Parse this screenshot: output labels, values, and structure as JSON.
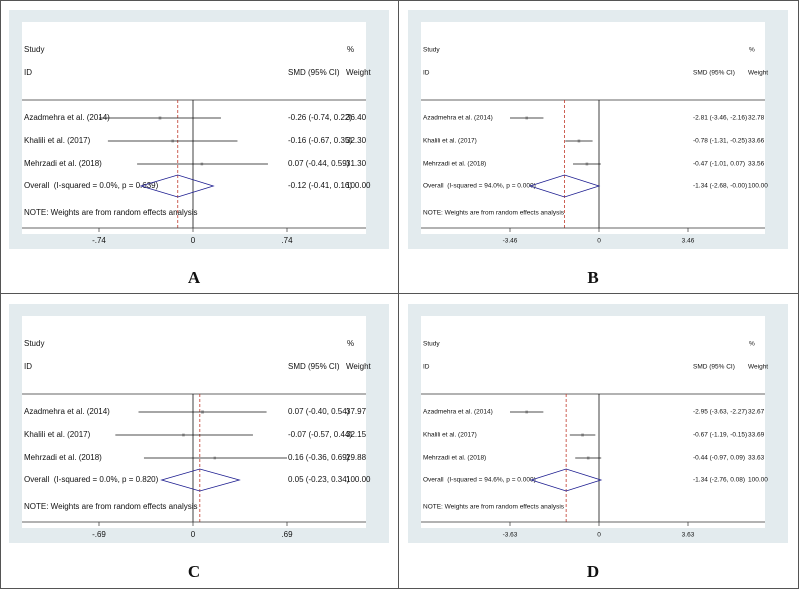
{
  "chart_data": [
    {
      "type": "forest",
      "panel": "A",
      "headers": {
        "study": "Study",
        "id": "ID",
        "effect": "SMD (95% CI)",
        "pct": "%",
        "weight": "Weight"
      },
      "studies": [
        "Azadmehra et al. (2014)",
        "Khalili et al. (2017)",
        "Mehrzadi et al. (2018)"
      ],
      "values": [
        -0.26,
        -0.16,
        0.07
      ],
      "ci_low": [
        -0.74,
        -0.67,
        -0.44
      ],
      "ci_high": [
        0.22,
        0.35,
        0.59
      ],
      "value_labels": [
        "-0.26 (-0.74, 0.22)",
        "-0.16 (-0.67, 0.35)",
        "0.07 (-0.44, 0.59)"
      ],
      "weights": [
        36.4,
        32.3,
        31.3
      ],
      "weight_labels": [
        "36.40",
        "32.30",
        "31.30"
      ],
      "overall": {
        "label": "Overall  (I-squared = 0.0%, p = 0.639)",
        "value": -0.12,
        "ci_low": -0.41,
        "ci_high": 0.16,
        "value_label": "-0.12 (-0.41, 0.16)",
        "weight": 100,
        "weight_label": "100.00"
      },
      "note": "NOTE: Weights are from random effects analysis",
      "xlim": [
        -0.74,
        0.74
      ],
      "xticks": [
        {
          "value": -0.74,
          "label": "-.74"
        },
        0,
        {
          "value": 0.74,
          "label": ".74"
        }
      ]
    },
    {
      "type": "forest",
      "panel": "B",
      "headers": {
        "study": "Study",
        "id": "ID",
        "effect": "SMD (95% CI)",
        "pct": "%",
        "weight": "Weight"
      },
      "studies": [
        "Azadmehra et al. (2014)",
        "Khalili et al. (2017)",
        "Mehrzadi et al. (2018)"
      ],
      "values": [
        -2.81,
        -0.78,
        -0.47
      ],
      "ci_low": [
        -3.46,
        -1.31,
        -1.01
      ],
      "ci_high": [
        -2.16,
        -0.25,
        0.07
      ],
      "value_labels": [
        "-2.81 (-3.46, -2.16)",
        "-0.78 (-1.31, -0.25)",
        "-0.47 (-1.01, 0.07)"
      ],
      "weights": [
        32.78,
        33.66,
        33.56
      ],
      "weight_labels": [
        "32.78",
        "33.66",
        "33.56"
      ],
      "overall": {
        "label": "Overall  (I-squared = 94.0%, p = 0.000)",
        "value": -1.34,
        "ci_low": -2.68,
        "ci_high": 0,
        "value_label": "-1.34 (-2.68, -0.00)",
        "weight": 100,
        "weight_label": "100.00"
      },
      "note": "NOTE: Weights are from random effects analysis",
      "xlim": [
        -3.46,
        3.46
      ],
      "xticks": [
        -3.46,
        0,
        3.46
      ]
    },
    {
      "type": "forest",
      "panel": "C",
      "headers": {
        "study": "Study",
        "id": "ID",
        "effect": "SMD (95% CI)",
        "pct": "%",
        "weight": "Weight"
      },
      "studies": [
        "Azadmehra et al. (2014)",
        "Khalili et al. (2017)",
        "Mehrzadi et al. (2018)"
      ],
      "values": [
        0.07,
        -0.07,
        0.16
      ],
      "ci_low": [
        -0.4,
        -0.57,
        -0.36
      ],
      "ci_high": [
        0.54,
        0.44,
        0.69
      ],
      "value_labels": [
        "0.07 (-0.40, 0.54)",
        "-0.07 (-0.57, 0.44)",
        "0.16 (-0.36, 0.69)"
      ],
      "weights": [
        37.97,
        32.15,
        29.88
      ],
      "weight_labels": [
        "37.97",
        "32.15",
        "29.88"
      ],
      "overall": {
        "label": "Overall  (I-squared = 0.0%, p = 0.820)",
        "value": 0.05,
        "ci_low": -0.23,
        "ci_high": 0.34,
        "value_label": "0.05 (-0.23, 0.34)",
        "weight": 100,
        "weight_label": "100.00"
      },
      "note": "NOTE: Weights are from random effects analysis",
      "xlim": [
        -0.69,
        0.69
      ],
      "xticks": [
        {
          "value": -0.69,
          "label": "-.69"
        },
        0,
        {
          "value": 0.69,
          "label": ".69"
        }
      ]
    },
    {
      "type": "forest",
      "panel": "D",
      "headers": {
        "study": "Study",
        "id": "ID",
        "effect": "SMD (95% CI)",
        "pct": "%",
        "weight": "Weight"
      },
      "studies": [
        "Azadmehra et al. (2014)",
        "Khalili et al. (2017)",
        "Mehrzadi et al. (2018)"
      ],
      "values": [
        -2.95,
        -0.67,
        -0.44
      ],
      "ci_low": [
        -3.63,
        -1.19,
        -0.97
      ],
      "ci_high": [
        -2.27,
        -0.15,
        0.09
      ],
      "value_labels": [
        "-2.95 (-3.63, -2.27)",
        "-0.67 (-1.19, -0.15)",
        "-0.44 (-0.97, 0.09)"
      ],
      "weights": [
        32.67,
        33.69,
        33.63
      ],
      "weight_labels": [
        "32.67",
        "33.69",
        "33.63"
      ],
      "overall": {
        "label": "Overall  (I-squared = 94.6%, p = 0.000)",
        "value": -1.34,
        "ci_low": -2.76,
        "ci_high": 0.08,
        "value_label": "-1.34 (-2.76, 0.08)",
        "weight": 100,
        "weight_label": "100.00"
      },
      "note": "NOTE: Weights are from random effects analysis",
      "xlim": [
        -3.63,
        3.63
      ],
      "xticks": [
        -3.63,
        0,
        3.63
      ]
    }
  ]
}
